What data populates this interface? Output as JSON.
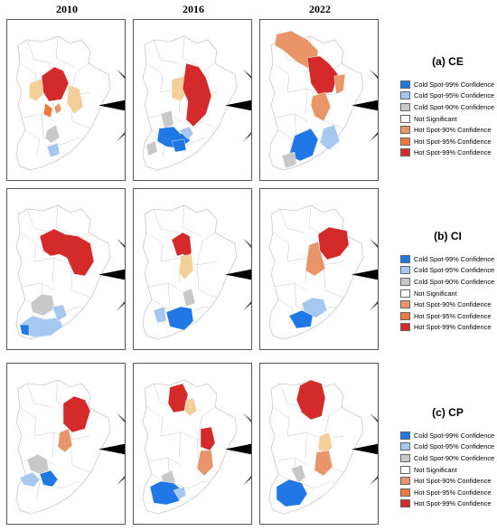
{
  "years": [
    "2010",
    "2016",
    "2022"
  ],
  "legend_items": [
    {
      "label": "Cold Spot-99% Confidence",
      "color": "#1f78e6"
    },
    {
      "label": "Cold Spot-95% Confidence",
      "color": "#a6c8f0"
    },
    {
      "label": "Cold Spot-90% Confidence",
      "color": "#c8c8c8"
    },
    {
      "label": "Not Significant",
      "color": "#ffffff"
    },
    {
      "label": "Hot Spot-90% Confidence",
      "color": "#e8956a"
    },
    {
      "label": "Hot Spot-95% Confidence",
      "color": "#f07a3c"
    },
    {
      "label": "Hot Spot-99% Confidence",
      "color": "#d42a2a"
    }
  ],
  "extra_colors": {
    "light_hot": "#f5cf9a",
    "boundary": "#c8c8c8",
    "background": "#ffffff"
  },
  "compass_icon": "north-arrow-compass-icon",
  "groups": [
    {
      "title": "(a) CE",
      "maps": [
        {
          "year": "2010",
          "regions": [
            {
              "cls": "light_hot"
            },
            {
              "cls": "hot99"
            },
            {
              "cls": "light_hot"
            },
            {
              "cls": "hot95"
            },
            {
              "cls": "hot90"
            },
            {
              "cls": "cold90"
            },
            {
              "cls": "cold95"
            }
          ]
        },
        {
          "year": "2016",
          "regions": [
            {
              "cls": "light_hot"
            },
            {
              "cls": "hot99"
            },
            {
              "cls": "cold90"
            },
            {
              "cls": "cold99"
            },
            {
              "cls": "cold95"
            },
            {
              "cls": "cold90"
            },
            {
              "cls": "cold99"
            }
          ]
        },
        {
          "year": "2022",
          "regions": [
            {
              "cls": "hot90"
            },
            {
              "cls": "hot99"
            },
            {
              "cls": "hot90"
            },
            {
              "cls": "hot90"
            },
            {
              "cls": "cold95"
            },
            {
              "cls": "cold99"
            },
            {
              "cls": "cold90"
            }
          ]
        }
      ]
    },
    {
      "title": "(b) CI",
      "maps": [
        {
          "year": "2010",
          "regions": [
            {
              "cls": "hot99"
            },
            {
              "cls": "cold90"
            },
            {
              "cls": "cold95"
            },
            {
              "cls": "cold99"
            },
            {
              "cls": "cold95"
            }
          ]
        },
        {
          "year": "2016",
          "regions": [
            {
              "cls": "hot99"
            },
            {
              "cls": "light_hot"
            },
            {
              "cls": "cold90"
            },
            {
              "cls": "cold99"
            },
            {
              "cls": "cold95"
            }
          ]
        },
        {
          "year": "2022",
          "regions": [
            {
              "cls": "hot90"
            },
            {
              "cls": "hot99"
            },
            {
              "cls": "cold95"
            },
            {
              "cls": "cold99"
            }
          ]
        }
      ]
    },
    {
      "title": "(c) CP",
      "maps": [
        {
          "year": "2010",
          "regions": [
            {
              "cls": "hot99"
            },
            {
              "cls": "hot90"
            },
            {
              "cls": "cold90"
            },
            {
              "cls": "cold95"
            },
            {
              "cls": "cold99"
            }
          ]
        },
        {
          "year": "2016",
          "regions": [
            {
              "cls": "hot99"
            },
            {
              "cls": "light_hot"
            },
            {
              "cls": "hot99"
            },
            {
              "cls": "hot90"
            },
            {
              "cls": "cold90"
            },
            {
              "cls": "cold99"
            },
            {
              "cls": "cold95"
            }
          ]
        },
        {
          "year": "2022",
          "regions": [
            {
              "cls": "hot99"
            },
            {
              "cls": "light_hot"
            },
            {
              "cls": "hot90"
            },
            {
              "cls": "cold90"
            },
            {
              "cls": "cold99"
            }
          ]
        }
      ]
    }
  ]
}
